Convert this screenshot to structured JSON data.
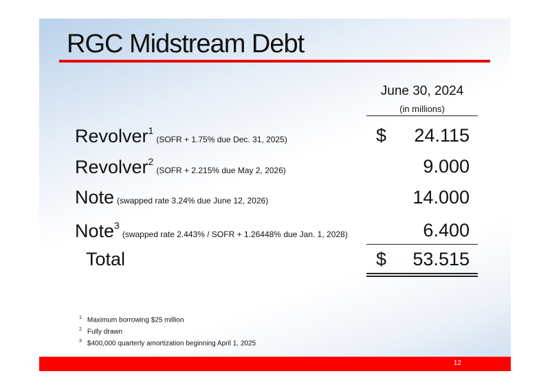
{
  "title": "RGC Midstream Debt",
  "column_header": {
    "date": "June 30, 2024",
    "units": "(in millions)"
  },
  "rows": [
    {
      "label": "Revolver",
      "footnote": "1",
      "note": "(SOFR + 1.75% due Dec. 31, 2025)",
      "currency": "$",
      "amount": "24.115"
    },
    {
      "label": "Revolver",
      "footnote": "2",
      "note": "(SOFR + 2.215% due May 2, 2026)",
      "currency": "",
      "amount": "9.000"
    },
    {
      "label": "Note",
      "footnote": "",
      "note": "(swapped rate 3.24% due June 12, 2026)",
      "currency": "",
      "amount": "14.000"
    },
    {
      "label": "Note",
      "footnote": "3",
      "note": "(swapped rate 2.443% / SOFR + 1.26448% due Jan. 1, 2028)",
      "currency": "",
      "amount": "6.400"
    }
  ],
  "total": {
    "label": "Total",
    "currency": "$",
    "amount": "53.515"
  },
  "footnotes": [
    {
      "mark": "1",
      "text": "Maximum borrowing $25 million"
    },
    {
      "mark": "2",
      "text": "Fully drawn"
    },
    {
      "mark": "3",
      "text": "$400,000 quarterly amortization beginning April 1, 2025"
    }
  ],
  "page_number": "12",
  "colors": {
    "accent": "#ff0000",
    "background_tint": "#b9d1ea"
  }
}
